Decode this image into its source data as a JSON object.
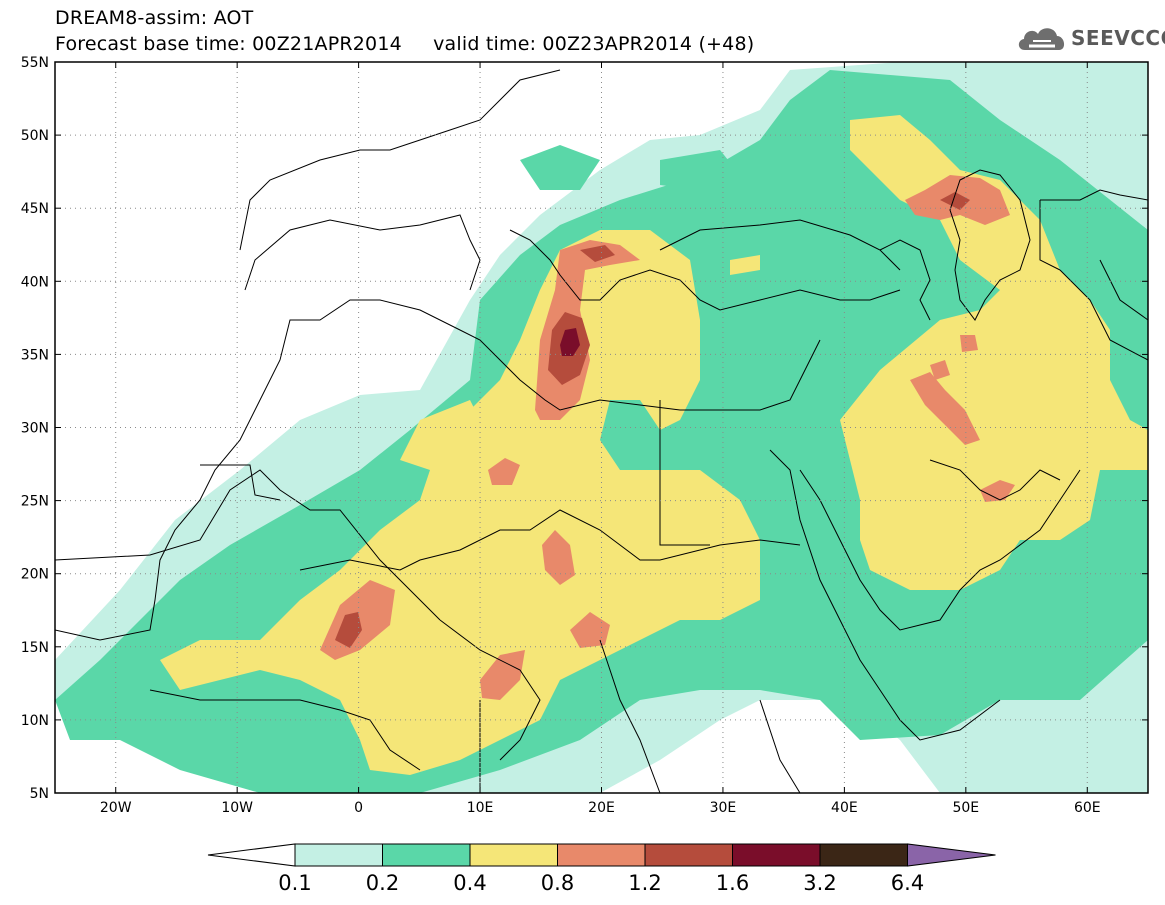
{
  "header": {
    "title_line1": "DREAM8-assim: AOT",
    "title_line2": "Forecast base time: 00Z21APR2014     valid time: 00Z23APR2014 (+48)",
    "logo_text": "SEEVCCC",
    "logo_icon": "cloud-icon"
  },
  "map": {
    "lon_range": [
      -25,
      65
    ],
    "lat_range": [
      5,
      55
    ],
    "lat_ticks": [
      {
        "value": 55,
        "label": "55N"
      },
      {
        "value": 50,
        "label": "50N"
      },
      {
        "value": 45,
        "label": "45N"
      },
      {
        "value": 40,
        "label": "40N"
      },
      {
        "value": 35,
        "label": "35N"
      },
      {
        "value": 30,
        "label": "30N"
      },
      {
        "value": 25,
        "label": "25N"
      },
      {
        "value": 20,
        "label": "20N"
      },
      {
        "value": 15,
        "label": "15N"
      },
      {
        "value": 10,
        "label": "10N"
      },
      {
        "value": 5,
        "label": "5N"
      }
    ],
    "lon_ticks": [
      {
        "value": -20,
        "label": "20W"
      },
      {
        "value": -10,
        "label": "10W"
      },
      {
        "value": 0,
        "label": "0"
      },
      {
        "value": 10,
        "label": "10E"
      },
      {
        "value": 20,
        "label": "20E"
      },
      {
        "value": 30,
        "label": "30E"
      },
      {
        "value": 40,
        "label": "40E"
      },
      {
        "value": 50,
        "label": "50E"
      },
      {
        "value": 60,
        "label": "60E"
      }
    ],
    "grid": "dotted"
  },
  "colorbar": {
    "labels": [
      "0.1",
      "0.2",
      "0.4",
      "0.8",
      "1.2",
      "1.6",
      "3.2",
      "6.4"
    ],
    "colors": [
      "#ffffff",
      "#c4f0e4",
      "#5ad7a8",
      "#f5e678",
      "#e8896a",
      "#b54c3c",
      "#7a0d2a",
      "#3b2616",
      "#8a64a8"
    ]
  },
  "dust_levels": [
    {
      "level": "0.1",
      "color": "#c4f0e4"
    },
    {
      "level": "0.2",
      "color": "#5ad7a8"
    },
    {
      "level": "0.4",
      "color": "#f5e678"
    },
    {
      "level": "0.8",
      "color": "#e8896a"
    },
    {
      "level": "1.2",
      "color": "#b54c3c"
    },
    {
      "level": "1.6",
      "color": "#7a0d2a"
    }
  ]
}
